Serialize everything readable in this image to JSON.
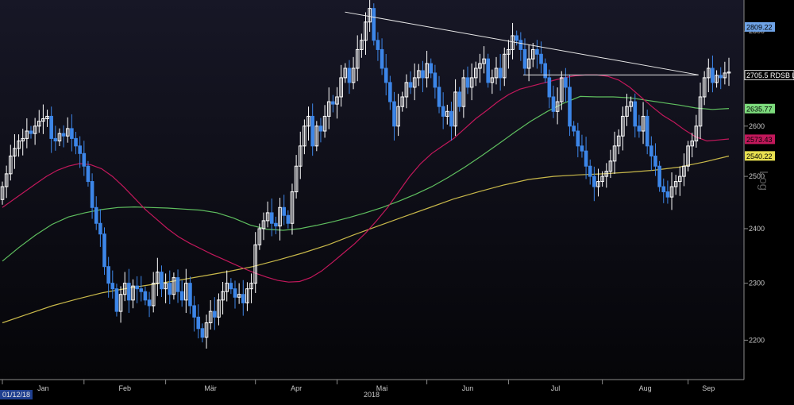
{
  "chart_data": {
    "type": "candlestick",
    "scale": "log",
    "scale_label": "Log",
    "start_date_label": "01/12/18",
    "year_label": "2018",
    "ylim": [
      2140,
      2860
    ],
    "y_ticks": [
      2200,
      2300,
      2400,
      2500,
      2600,
      2700,
      2800
    ],
    "x_ticks": [
      "Jan",
      "Feb",
      "Mär",
      "Apr",
      "Mai",
      "Jun",
      "Jul",
      "Aug",
      "Sep"
    ],
    "closes": [
      2480,
      2505,
      2540,
      2555,
      2570,
      2575,
      2590,
      2585,
      2600,
      2610,
      2615,
      2620,
      2575,
      2570,
      2585,
      2580,
      2595,
      2575,
      2560,
      2545,
      2520,
      2490,
      2440,
      2410,
      2390,
      2330,
      2300,
      2290,
      2250,
      2280,
      2300,
      2270,
      2295,
      2290,
      2285,
      2270,
      2260,
      2300,
      2320,
      2290,
      2300,
      2280,
      2310,
      2285,
      2270,
      2300,
      2260,
      2240,
      2220,
      2205,
      2230,
      2250,
      2240,
      2270,
      2285,
      2300,
      2290,
      2275,
      2280,
      2265,
      2290,
      2300,
      2370,
      2400,
      2415,
      2430,
      2410,
      2405,
      2440,
      2425,
      2410,
      2470,
      2520,
      2560,
      2600,
      2620,
      2560,
      2600,
      2590,
      2620,
      2650,
      2645,
      2660,
      2700,
      2720,
      2690,
      2720,
      2760,
      2780,
      2820,
      2850,
      2780,
      2760,
      2720,
      2690,
      2650,
      2600,
      2640,
      2660,
      2690,
      2680,
      2700,
      2715,
      2700,
      2730,
      2710,
      2680,
      2640,
      2620,
      2630,
      2600,
      2670,
      2640,
      2700,
      2680,
      2700,
      2720,
      2730,
      2740,
      2690,
      2700,
      2720,
      2700,
      2750,
      2760,
      2790,
      2780,
      2760,
      2720,
      2740,
      2760,
      2750,
      2730,
      2700,
      2660,
      2630,
      2650,
      2700,
      2680,
      2600,
      2590,
      2560,
      2550,
      2520,
      2500,
      2480,
      2490,
      2500,
      2510,
      2530,
      2560,
      2580,
      2620,
      2640,
      2650,
      2600,
      2590,
      2620,
      2560,
      2540,
      2520,
      2480,
      2470,
      2460,
      2480,
      2490,
      2500,
      2520,
      2560,
      2570,
      2600,
      2660,
      2700,
      2720,
      2690,
      2705,
      2700,
      2710,
      2712
    ],
    "ma_50": [
      2440,
      2455,
      2470,
      2485,
      2500,
      2512,
      2520,
      2525,
      2523,
      2515,
      2500,
      2480,
      2458,
      2436,
      2418,
      2400,
      2385,
      2373,
      2363,
      2353,
      2344,
      2335,
      2326,
      2318,
      2311,
      2305,
      2302,
      2303,
      2310,
      2322,
      2338,
      2355,
      2372,
      2392,
      2415,
      2440,
      2470,
      2500,
      2525,
      2545,
      2560,
      2575,
      2595,
      2615,
      2632,
      2650,
      2665,
      2676,
      2682,
      2688,
      2694,
      2700,
      2704,
      2706,
      2706,
      2703,
      2695,
      2680,
      2660,
      2640,
      2622,
      2608,
      2592,
      2578,
      2570,
      2572,
      2574
    ],
    "ma_100": [
      2340,
      2365,
      2388,
      2408,
      2422,
      2430,
      2436,
      2440,
      2441,
      2440,
      2439,
      2437,
      2435,
      2430,
      2420,
      2407,
      2399,
      2397,
      2400,
      2406,
      2413,
      2421,
      2430,
      2440,
      2452,
      2465,
      2480,
      2498,
      2518,
      2540,
      2563,
      2587,
      2610,
      2630,
      2647,
      2661,
      2660,
      2660,
      2658,
      2653,
      2648,
      2643,
      2637,
      2634,
      2636
    ],
    "ma_200": [
      2230,
      2245,
      2260,
      2272,
      2283,
      2291,
      2298,
      2305,
      2313,
      2321,
      2330,
      2342,
      2355,
      2370,
      2388,
      2405,
      2422,
      2439,
      2456,
      2470,
      2483,
      2494,
      2500,
      2503,
      2505,
      2508,
      2512,
      2518,
      2528,
      2540
    ],
    "trendlines": [
      {
        "from": [
          0.4637,
          2842
        ],
        "to": [
          0.9388,
          2706
        ]
      },
      {
        "from": [
          0.7032,
          2706
        ],
        "to": [
          0.9388,
          2706
        ]
      }
    ],
    "price_labels": [
      {
        "text": "2809.22",
        "value": 2809.22,
        "color": "#6fa3e6"
      },
      {
        "text": "2705.5 RDSB L",
        "value": 2705.5,
        "color": "#ffffff"
      },
      {
        "text": "2635.77",
        "value": 2635.77,
        "color": "#7ddc7d"
      },
      {
        "text": "2573.43",
        "value": 2573.43,
        "color": "#c2185b"
      },
      {
        "text": "2540.22",
        "value": 2540.22,
        "color": "#e8e050"
      }
    ],
    "colors": {
      "background": "#000000",
      "plot_top": "#10101c",
      "up_candle": "#ffffff",
      "down_candle": "#3d86e8",
      "ma_50": "#c2185b",
      "ma_100": "#5fbf5f",
      "ma_200": "#c8b84a",
      "trendline": "#e8e8e8",
      "grid": "#2a2a36",
      "axis": "#8a8a8a"
    }
  }
}
